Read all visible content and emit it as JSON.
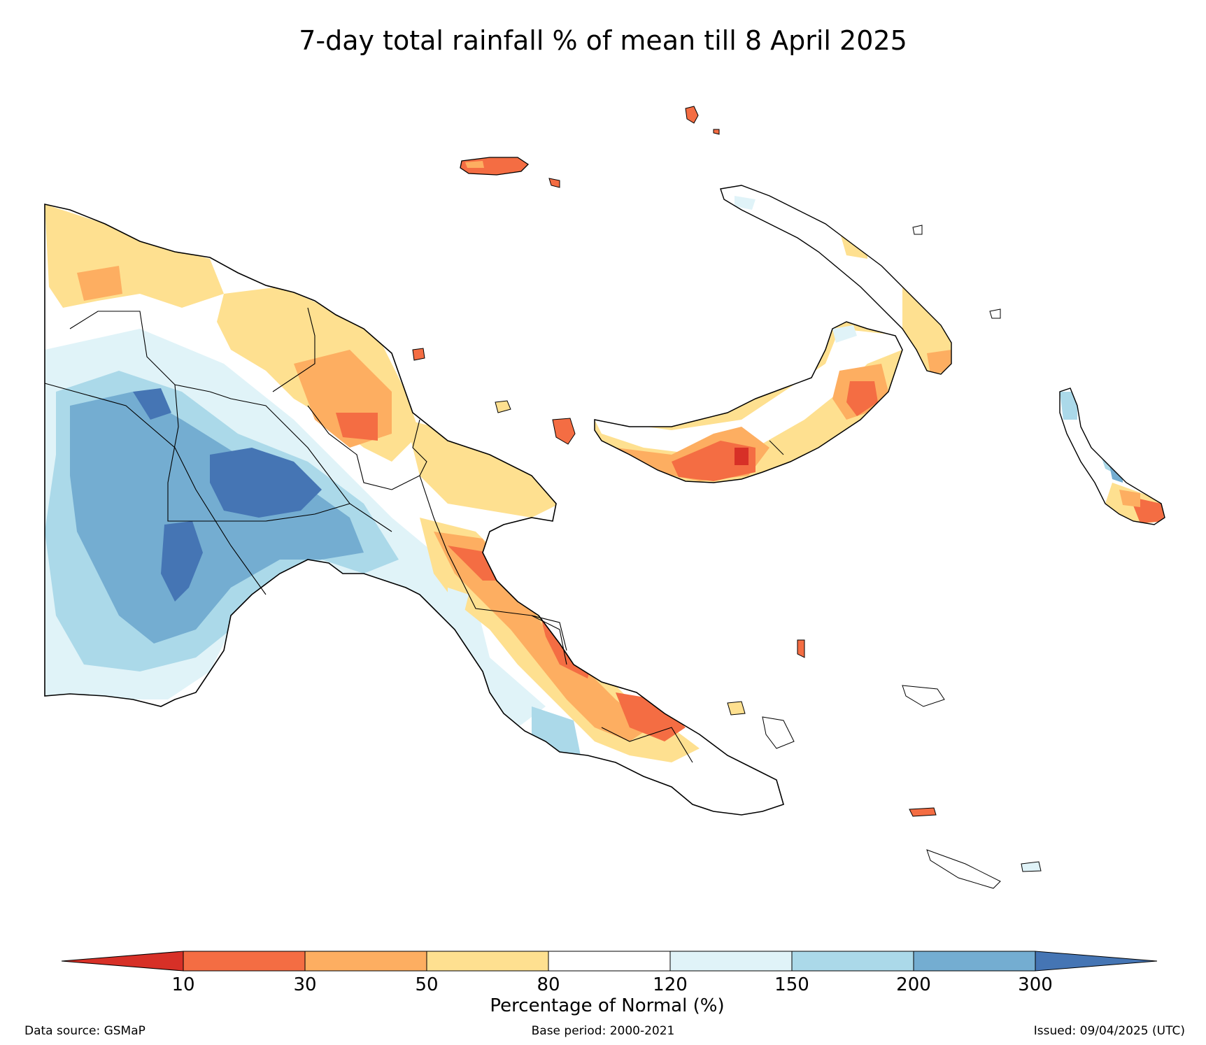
{
  "title": "7-day total rainfall % of mean till 8 April 2025",
  "colors": {
    "lt10": "#d73027",
    "c10_30": "#f46d43",
    "c30_50": "#fdae61",
    "c50_80": "#fee090",
    "c80_120": "#ffffff",
    "c120_150": "#e0f3f8",
    "c150_200": "#abd9e9",
    "c200_300": "#74add1",
    "gt300": "#4575b4",
    "border": "#000000"
  },
  "legend": {
    "label": "Percentage of Normal (%)",
    "ticks": [
      "10",
      "30",
      "50",
      "80",
      "120",
      "150",
      "200",
      "300"
    ]
  },
  "footer": {
    "source": "Data source: GSMaP",
    "base_period": "Base period: 2000-2021",
    "issued": "Issued: 09/04/2025 (UTC)"
  }
}
